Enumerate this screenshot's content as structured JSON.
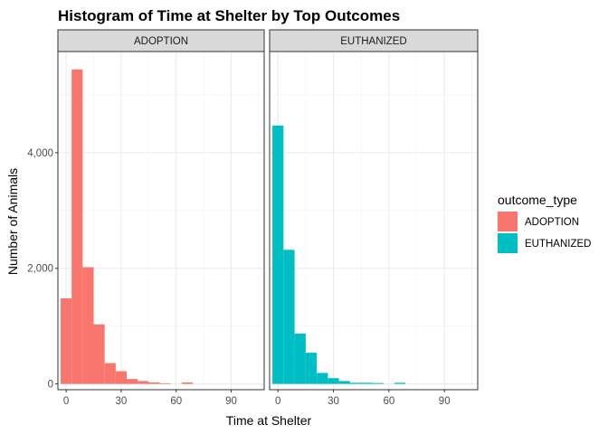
{
  "chart_data": {
    "type": "bar",
    "title": "Histogram of Time at Shelter by Top Outcomes",
    "xlabel": "Time at Shelter",
    "ylabel": "Number of Animals",
    "xlim": [
      -4.5,
      108
    ],
    "ylim": [
      -100,
      5750
    ],
    "x_ticks": [
      0,
      30,
      60,
      90
    ],
    "x_tick_labels": [
      "0",
      "30",
      "60",
      "90"
    ],
    "y_ticks": [
      0,
      2000,
      4000
    ],
    "y_tick_labels": [
      "0",
      "2,000",
      "4,000"
    ],
    "grid": true,
    "bin_width": 6,
    "bin_start": -3,
    "legend": {
      "title": "outcome_type",
      "position": "right",
      "entries": [
        {
          "label": "ADOPTION",
          "color": "#F8766D"
        },
        {
          "label": "EUTHANIZED",
          "color": "#00BFC4"
        }
      ]
    },
    "facets": [
      {
        "name": "ADOPTION",
        "color": "#F8766D",
        "counts": [
          1480,
          5440,
          2020,
          1030,
          360,
          220,
          85,
          50,
          25,
          12,
          0,
          25,
          0,
          0,
          0,
          0,
          0,
          0
        ]
      },
      {
        "name": "EUTHANIZED",
        "color": "#00BFC4",
        "counts": [
          4470,
          2320,
          870,
          540,
          190,
          100,
          50,
          20,
          20,
          15,
          0,
          20,
          0,
          0,
          0,
          0,
          0,
          0
        ]
      }
    ]
  }
}
